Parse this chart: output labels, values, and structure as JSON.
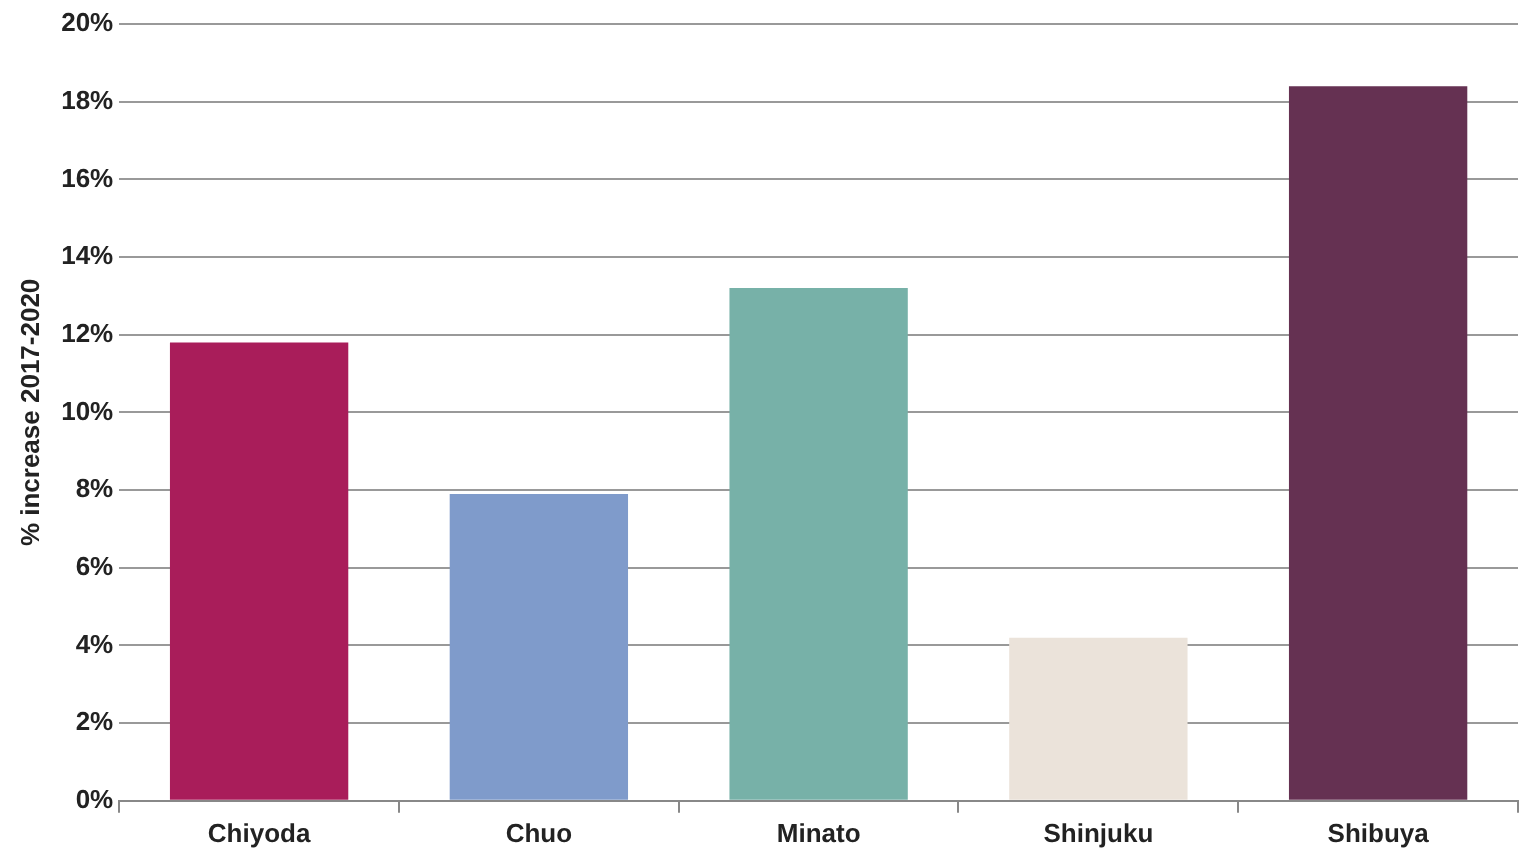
{
  "chart_data": {
    "type": "bar",
    "ylabel": "% increase 2017-2020",
    "categories": [
      "Chiyoda",
      "Chuo",
      "Minato",
      "Shinjuku",
      "Shibuya"
    ],
    "values": [
      11.8,
      7.9,
      13.2,
      4.2,
      18.4
    ],
    "colors": [
      "#a91d5a",
      "#7f9bcb",
      "#77b1a8",
      "#ebe3da",
      "#653152"
    ],
    "ylim": [
      0,
      20
    ],
    "yticks": [
      {
        "value": 0,
        "label": "0%"
      },
      {
        "value": 2,
        "label": "2%"
      },
      {
        "value": 4,
        "label": "4%"
      },
      {
        "value": 6,
        "label": "6%"
      },
      {
        "value": 8,
        "label": "8%"
      },
      {
        "value": 10,
        "label": "10%"
      },
      {
        "value": 12,
        "label": "12%"
      },
      {
        "value": 14,
        "label": "14%"
      },
      {
        "value": 16,
        "label": "16%"
      },
      {
        "value": 18,
        "label": "18%"
      },
      {
        "value": 20,
        "label": "20%"
      }
    ],
    "grid": "y"
  }
}
